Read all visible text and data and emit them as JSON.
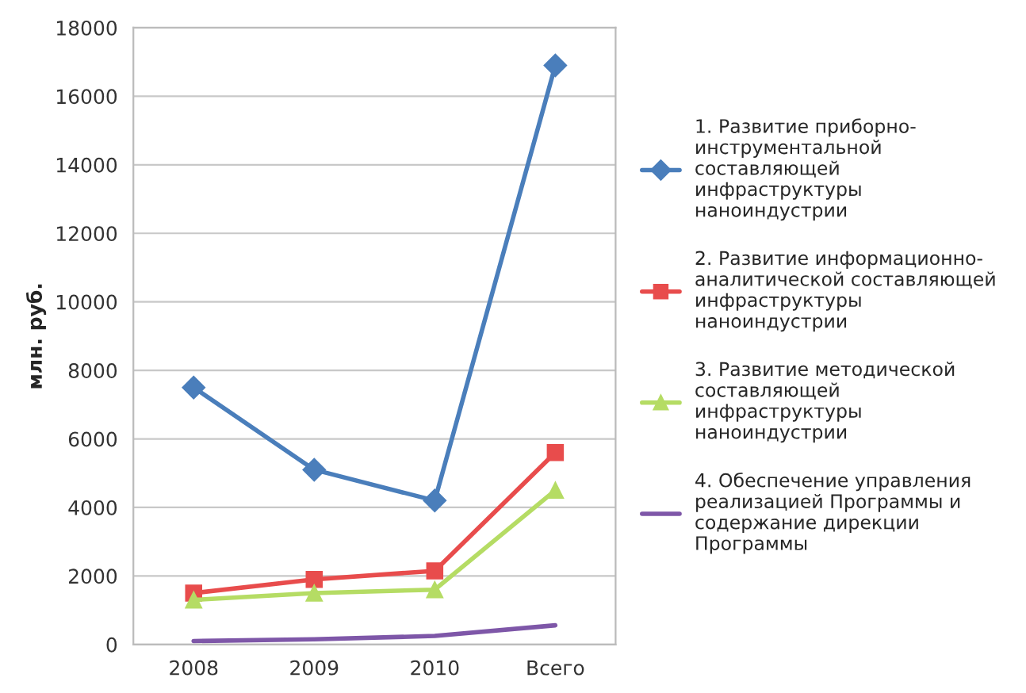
{
  "chart_data": {
    "type": "line",
    "ylabel": "млн. руб.",
    "categories": [
      "2008",
      "2009",
      "2010",
      "Всего"
    ],
    "ylim": [
      0,
      18000
    ],
    "yticks": [
      0,
      2000,
      4000,
      6000,
      8000,
      10000,
      12000,
      14000,
      16000,
      18000
    ],
    "grid": "y",
    "legend": "right",
    "series": [
      {
        "name": "1. Развитие приборно-\nинструментальной\nсоставляющей\nинфраструктуры\nнаноиндустрии",
        "color": "#4a7ebb",
        "marker": "diamond",
        "values": [
          7500,
          5100,
          4200,
          16900
        ]
      },
      {
        "name": "2. Развитие информационно-\nаналитической составляющей\nинфраструктуры\nнаноиндустрии",
        "color": "#e84c4c",
        "marker": "square",
        "values": [
          1500,
          1900,
          2150,
          5600
        ]
      },
      {
        "name": "3. Развитие методической\nсоставляющей\nинфраструктуры\nнаноиндустрии",
        "color": "#b5dc64",
        "marker": "triangle",
        "values": [
          1300,
          1500,
          1600,
          4500
        ]
      },
      {
        "name": "4. Обеспечение управления\nреализацией Программы и\nсодержание дирекции\nПрограммы",
        "color": "#7e57a8",
        "marker": "none",
        "values": [
          100,
          150,
          250,
          560
        ]
      }
    ]
  }
}
